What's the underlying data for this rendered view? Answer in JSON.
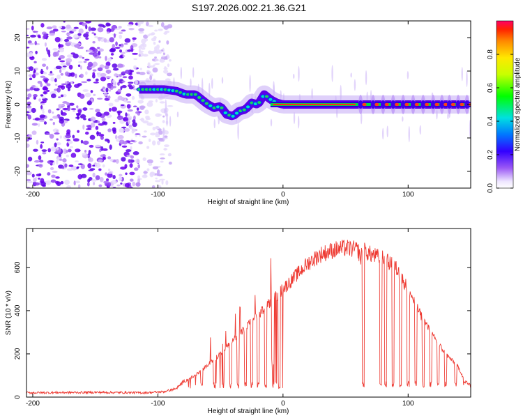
{
  "title": "S197.2026.002.21.36.G21",
  "chart_data": [
    {
      "type": "heatmap",
      "xlabel": "Height of straight line (km)",
      "ylabel": "Frequency (Hz)",
      "xlim": [
        -205,
        150
      ],
      "ylim": [
        -25,
        25
      ],
      "xticks": [
        -200,
        -100,
        0,
        100
      ],
      "yticks": [
        -20,
        -10,
        0,
        10,
        20
      ],
      "xticklabels": [
        "-200",
        "-100",
        "0",
        "100"
      ],
      "yticklabels": [
        "-20",
        "-10",
        "0",
        "10",
        "20"
      ],
      "colorbar": {
        "label": "Normalized spectral amplitude",
        "range": [
          0,
          1
        ],
        "ticks": [
          0.0,
          0.2,
          0.4,
          0.6,
          0.8
        ],
        "ticklabels": [
          "0.0",
          "0.2",
          "0.4",
          "0.6",
          "0.8"
        ]
      },
      "noise_region": {
        "x_range": [
          -205,
          -100
        ],
        "freq_range": [
          -25,
          25
        ],
        "amplitude": 0.15
      },
      "ridge": {
        "x": [
          -115,
          -105,
          -95,
          -85,
          -78,
          -70,
          -65,
          -60,
          -55,
          -50,
          -45,
          -40,
          -35,
          -30,
          -25,
          -20,
          -15,
          -10,
          -5,
          0,
          150
        ],
        "freq": [
          4.5,
          4.5,
          4.5,
          4,
          3,
          3,
          1.5,
          0,
          -1,
          -0.5,
          -3,
          -3.5,
          -2,
          -1.5,
          0.5,
          0,
          3,
          1.5,
          0.5,
          0,
          0
        ]
      },
      "bright_line": {
        "x_range": [
          -10,
          150
        ],
        "freq": 0
      },
      "pulses_x": [
        62,
        72,
        80,
        88,
        96,
        104,
        112,
        120,
        127,
        133,
        140,
        147
      ]
    },
    {
      "type": "line",
      "xlabel": "Height of straight line (km)",
      "ylabel": "SNR (10 * v/v)",
      "xlim": [
        -205,
        150
      ],
      "ylim": [
        0,
        780
      ],
      "xticks": [
        -200,
        -100,
        0,
        100
      ],
      "yticks": [
        0,
        200,
        400,
        600
      ],
      "xticklabels": [
        "-200",
        "-100",
        "0",
        "100"
      ],
      "yticklabels": [
        "0",
        "200",
        "400",
        "600"
      ],
      "series": [
        {
          "name": "SNR",
          "color": "#ee3b33",
          "envelope_x": [
            -205,
            -150,
            -110,
            -95,
            -85,
            -80,
            -70,
            -60,
            -50,
            -40,
            -30,
            -20,
            -10,
            0,
            10,
            20,
            30,
            40,
            50,
            60,
            62,
            64,
            70,
            80,
            90,
            100,
            110,
            120,
            130,
            140,
            145,
            150
          ],
          "envelope_y": [
            20,
            22,
            20,
            25,
            40,
            70,
            100,
            150,
            200,
            260,
            320,
            380,
            440,
            500,
            560,
            620,
            660,
            680,
            690,
            680,
            640,
            680,
            660,
            640,
            600,
            500,
            380,
            280,
            200,
            140,
            80,
            50
          ],
          "dropouts_x": [
            -65,
            -55,
            -48,
            -42,
            -36,
            -30,
            -25,
            -20,
            -14,
            -8,
            -3,
            64,
            78,
            82,
            88,
            94,
            100,
            106,
            112,
            118,
            124,
            130,
            138,
            145
          ]
        }
      ]
    }
  ]
}
